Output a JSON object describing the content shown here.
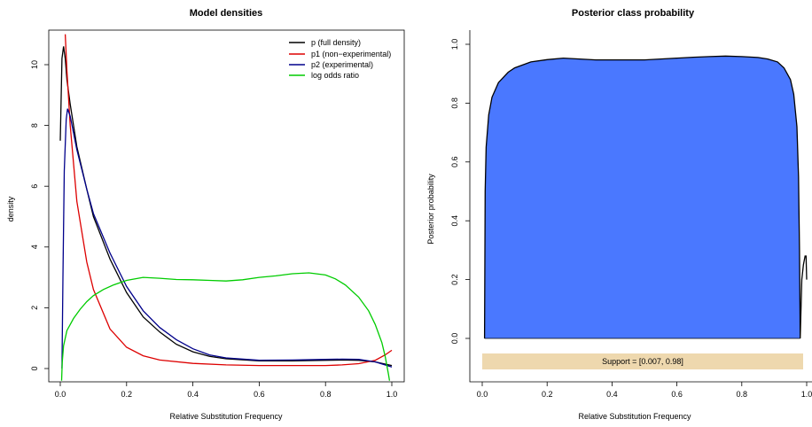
{
  "chart_data": [
    {
      "type": "line",
      "title": "Model densities",
      "xlabel": "Relative Substitution Frequency",
      "ylabel": "density",
      "xlim": [
        0,
        1
      ],
      "ylim": [
        0,
        11
      ],
      "xticks": [
        "0.0",
        "0.2",
        "0.4",
        "0.6",
        "0.8",
        "1.0"
      ],
      "yticks": [
        "0",
        "2",
        "4",
        "6",
        "8",
        "10"
      ],
      "grid": false,
      "legend_position": "top-right",
      "series": [
        {
          "name": "p (full density)",
          "color": "#000000",
          "points": [
            [
              0.0,
              7.5
            ],
            [
              0.005,
              10.2
            ],
            [
              0.01,
              10.6
            ],
            [
              0.015,
              10.2
            ],
            [
              0.02,
              9.5
            ],
            [
              0.03,
              8.7
            ],
            [
              0.05,
              7.3
            ],
            [
              0.08,
              5.9
            ],
            [
              0.1,
              5.0
            ],
            [
              0.15,
              3.6
            ],
            [
              0.2,
              2.5
            ],
            [
              0.25,
              1.7
            ],
            [
              0.3,
              1.2
            ],
            [
              0.35,
              0.8
            ],
            [
              0.4,
              0.55
            ],
            [
              0.45,
              0.4
            ],
            [
              0.5,
              0.32
            ],
            [
              0.6,
              0.25
            ],
            [
              0.7,
              0.25
            ],
            [
              0.8,
              0.27
            ],
            [
              0.85,
              0.28
            ],
            [
              0.9,
              0.27
            ],
            [
              0.95,
              0.22
            ],
            [
              1.0,
              0.1
            ]
          ]
        },
        {
          "name": "p1 (non−experimental)",
          "color": "#dd0000",
          "points": [
            [
              0.015,
              11.0
            ],
            [
              0.02,
              9.8
            ],
            [
              0.03,
              8.0
            ],
            [
              0.05,
              5.5
            ],
            [
              0.08,
              3.5
            ],
            [
              0.1,
              2.6
            ],
            [
              0.15,
              1.3
            ],
            [
              0.2,
              0.7
            ],
            [
              0.25,
              0.42
            ],
            [
              0.3,
              0.28
            ],
            [
              0.4,
              0.17
            ],
            [
              0.5,
              0.12
            ],
            [
              0.6,
              0.1
            ],
            [
              0.7,
              0.1
            ],
            [
              0.8,
              0.1
            ],
            [
              0.85,
              0.12
            ],
            [
              0.9,
              0.16
            ],
            [
              0.95,
              0.27
            ],
            [
              0.98,
              0.45
            ],
            [
              1.0,
              0.6
            ]
          ]
        },
        {
          "name": "p2 (experimental)",
          "color": "#00008b",
          "points": [
            [
              0.005,
              0.0
            ],
            [
              0.008,
              3.0
            ],
            [
              0.012,
              6.5
            ],
            [
              0.018,
              8.2
            ],
            [
              0.022,
              8.55
            ],
            [
              0.03,
              8.3
            ],
            [
              0.05,
              7.2
            ],
            [
              0.08,
              5.9
            ],
            [
              0.1,
              5.1
            ],
            [
              0.15,
              3.8
            ],
            [
              0.2,
              2.7
            ],
            [
              0.25,
              1.9
            ],
            [
              0.3,
              1.35
            ],
            [
              0.35,
              0.95
            ],
            [
              0.4,
              0.65
            ],
            [
              0.45,
              0.45
            ],
            [
              0.5,
              0.35
            ],
            [
              0.6,
              0.27
            ],
            [
              0.7,
              0.28
            ],
            [
              0.8,
              0.3
            ],
            [
              0.85,
              0.31
            ],
            [
              0.9,
              0.3
            ],
            [
              0.95,
              0.22
            ],
            [
              1.0,
              0.05
            ]
          ]
        },
        {
          "name": "log odds ratio",
          "color": "#00cc00",
          "points": [
            [
              0.004,
              -0.4
            ],
            [
              0.006,
              0.2
            ],
            [
              0.01,
              0.75
            ],
            [
              0.02,
              1.25
            ],
            [
              0.04,
              1.65
            ],
            [
              0.06,
              1.95
            ],
            [
              0.08,
              2.2
            ],
            [
              0.1,
              2.4
            ],
            [
              0.13,
              2.6
            ],
            [
              0.16,
              2.75
            ],
            [
              0.2,
              2.9
            ],
            [
              0.25,
              3.0
            ],
            [
              0.3,
              2.97
            ],
            [
              0.35,
              2.93
            ],
            [
              0.4,
              2.92
            ],
            [
              0.45,
              2.9
            ],
            [
              0.5,
              2.88
            ],
            [
              0.55,
              2.92
            ],
            [
              0.6,
              3.0
            ],
            [
              0.65,
              3.05
            ],
            [
              0.7,
              3.12
            ],
            [
              0.75,
              3.15
            ],
            [
              0.8,
              3.08
            ],
            [
              0.83,
              2.95
            ],
            [
              0.86,
              2.75
            ],
            [
              0.9,
              2.35
            ],
            [
              0.93,
              1.9
            ],
            [
              0.95,
              1.45
            ],
            [
              0.97,
              0.85
            ],
            [
              0.98,
              0.4
            ],
            [
              0.99,
              -0.2
            ],
            [
              0.993,
              -0.4
            ]
          ]
        }
      ]
    },
    {
      "type": "area",
      "title": "Posterior class probability",
      "xlabel": "Relative Substitution Frequency",
      "ylabel": "Posterior probability",
      "xlim": [
        0,
        1
      ],
      "ylim": [
        0,
        1
      ],
      "xticks": [
        "0.0",
        "0.2",
        "0.4",
        "0.6",
        "0.8",
        "1.0"
      ],
      "yticks": [
        "0.0",
        "0.2",
        "0.4",
        "0.6",
        "0.8",
        "1.0"
      ],
      "grid": false,
      "fill_color": "#4a78ff",
      "support_range": [
        0.007,
        0.98
      ],
      "support_label": "Support = [0.007, 0.98]",
      "support_color": "#eed8ae",
      "series": [
        {
          "color": "#000000",
          "points": [
            [
              0.007,
              0.0
            ],
            [
              0.009,
              0.5
            ],
            [
              0.012,
              0.65
            ],
            [
              0.02,
              0.76
            ],
            [
              0.03,
              0.82
            ],
            [
              0.05,
              0.87
            ],
            [
              0.08,
              0.905
            ],
            [
              0.1,
              0.92
            ],
            [
              0.15,
              0.94
            ],
            [
              0.2,
              0.948
            ],
            [
              0.25,
              0.953
            ],
            [
              0.3,
              0.95
            ],
            [
              0.35,
              0.947
            ],
            [
              0.4,
              0.947
            ],
            [
              0.45,
              0.947
            ],
            [
              0.5,
              0.947
            ],
            [
              0.55,
              0.95
            ],
            [
              0.6,
              0.953
            ],
            [
              0.65,
              0.956
            ],
            [
              0.7,
              0.958
            ],
            [
              0.75,
              0.96
            ],
            [
              0.8,
              0.958
            ],
            [
              0.85,
              0.955
            ],
            [
              0.88,
              0.95
            ],
            [
              0.91,
              0.94
            ],
            [
              0.93,
              0.92
            ],
            [
              0.95,
              0.88
            ],
            [
              0.96,
              0.83
            ],
            [
              0.97,
              0.72
            ],
            [
              0.975,
              0.55
            ],
            [
              0.978,
              0.3
            ],
            [
              0.98,
              0.0
            ],
            [
              0.985,
              0.2
            ],
            [
              0.99,
              0.25
            ],
            [
              0.995,
              0.28
            ],
            [
              0.998,
              0.28
            ],
            [
              1.0,
              0.2
            ]
          ]
        }
      ]
    }
  ]
}
